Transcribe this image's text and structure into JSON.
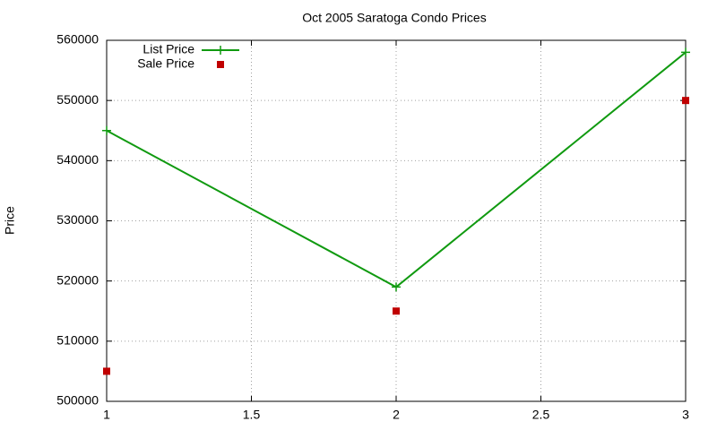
{
  "chart_data": {
    "type": "line",
    "title": "Oct 2005 Saratoga Condo Prices",
    "y_label": "Price",
    "x": [
      1,
      2,
      3
    ],
    "series": [
      {
        "name": "List Price",
        "color": "#109a10",
        "style": "linespoints",
        "values": [
          545000,
          519000,
          558000
        ]
      },
      {
        "name": "Sale Price",
        "color": "#c00000",
        "style": "points",
        "values": [
          505000,
          515000,
          550000
        ]
      }
    ],
    "xlim": [
      1,
      3
    ],
    "xticks": [
      1,
      1.5,
      2,
      2.5,
      3
    ],
    "ylim": [
      500000,
      560000
    ],
    "yticks": [
      500000,
      510000,
      520000,
      530000,
      540000,
      550000,
      560000
    ],
    "grid": true,
    "legend": "top-left"
  }
}
